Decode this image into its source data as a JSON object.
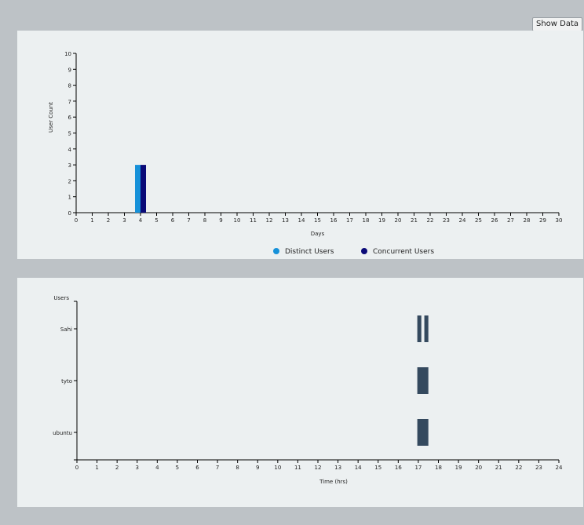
{
  "toolbar": {
    "show_data_label": "Show Data"
  },
  "colors": {
    "distinct": "#1691d9",
    "concurrent": "#0a0a78",
    "session": "#34495e",
    "panel_bg": "#ecf0f1",
    "page_bg": "#bdc2c6"
  },
  "chart_data": [
    {
      "type": "bar",
      "xlabel": "Days",
      "ylabel": "User Count",
      "xlim": [
        0,
        30
      ],
      "ylim": [
        0,
        10
      ],
      "x_ticks": [
        "0",
        "1",
        "2",
        "3",
        "4",
        "5",
        "6",
        "7",
        "8",
        "9",
        "10",
        "11",
        "12",
        "13",
        "14",
        "15",
        "16",
        "17",
        "18",
        "19",
        "20",
        "21",
        "22",
        "23",
        "24",
        "25",
        "26",
        "27",
        "28",
        "29",
        "30"
      ],
      "y_ticks": [
        "0",
        "1",
        "2",
        "3",
        "4",
        "5",
        "6",
        "7",
        "8",
        "9",
        "10"
      ],
      "legend_position": "bottom-center",
      "series": [
        {
          "name": "Distinct Users",
          "x": [
            4
          ],
          "values": [
            3
          ]
        },
        {
          "name": "Concurrent Users",
          "x": [
            4
          ],
          "values": [
            3
          ]
        }
      ]
    },
    {
      "type": "timeline",
      "xlabel": "Time (hrs)",
      "ylabel": "Users",
      "xlim": [
        0,
        24
      ],
      "x_ticks": [
        "0",
        "1",
        "2",
        "3",
        "4",
        "5",
        "6",
        "7",
        "8",
        "9",
        "10",
        "11",
        "12",
        "13",
        "14",
        "15",
        "16",
        "17",
        "18",
        "19",
        "20",
        "21",
        "22",
        "23",
        "24"
      ],
      "categories": [
        "Sahi",
        "tyto",
        "ubuntu"
      ],
      "sessions": [
        {
          "user": "Sahi",
          "start": 16.95,
          "end": 17.15
        },
        {
          "user": "Sahi",
          "start": 17.3,
          "end": 17.5
        },
        {
          "user": "tyto",
          "start": 16.95,
          "end": 17.5
        },
        {
          "user": "ubuntu",
          "start": 16.95,
          "end": 17.5
        }
      ]
    }
  ]
}
